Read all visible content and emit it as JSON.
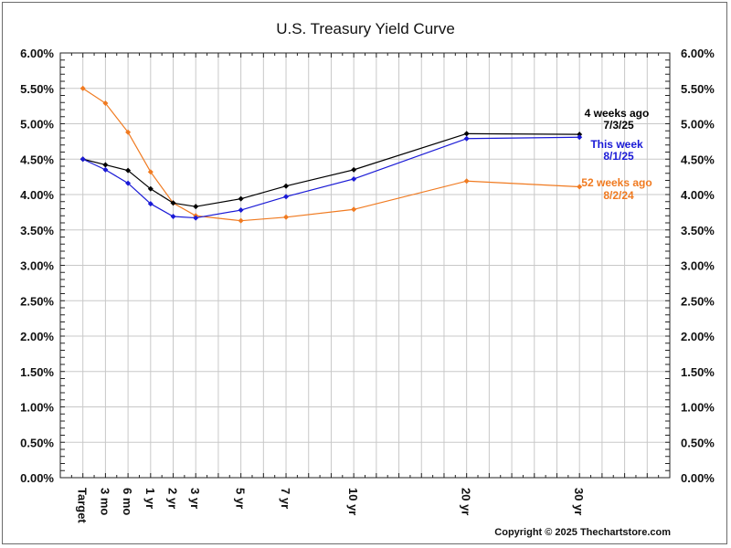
{
  "chart_data": {
    "type": "line",
    "title": "U.S. Treasury Yield Curve",
    "xlabel": "",
    "ylabel": "",
    "ylim": [
      0,
      6
    ],
    "y_tick_step": 0.5,
    "y_minor_step": 0.1,
    "y_tick_format": "percent_2dp",
    "grid": true,
    "categories": [
      "Target",
      "3 mo",
      "6 mo",
      "1 yr",
      "2 yr",
      "3 yr",
      "5 yr",
      "7 yr",
      "10 yr",
      "20 yr",
      "30 yr"
    ],
    "category_slots": [
      1,
      2,
      3,
      4,
      5,
      6,
      8,
      10,
      13,
      18,
      23
    ],
    "x_slot_range": [
      0,
      27
    ],
    "series": [
      {
        "name": "52 weeks ago",
        "date": "8/2/24",
        "color": "#f07a20",
        "values": [
          5.5,
          5.29,
          4.88,
          4.32,
          3.88,
          3.7,
          3.63,
          3.68,
          3.79,
          4.19,
          4.11
        ]
      },
      {
        "name": "4 weeks ago",
        "date": "7/3/25",
        "color": "#000000",
        "values": [
          4.5,
          4.42,
          4.34,
          4.08,
          3.88,
          3.83,
          3.94,
          4.12,
          4.35,
          4.86,
          4.85
        ]
      },
      {
        "name": "This week",
        "date": "8/1/25",
        "color": "#1a1ad6",
        "values": [
          4.5,
          4.35,
          4.16,
          3.87,
          3.69,
          3.67,
          3.78,
          3.97,
          4.22,
          4.79,
          4.81
        ]
      }
    ],
    "legend_placement": "right, next to line ends",
    "legend_order": [
      "4 weeks ago",
      "This week",
      "52 weeks ago"
    ],
    "annotations": [
      "Copyright © 2025 Thechartstore.com"
    ]
  },
  "copyright": "Copyright © 2025 Thechartstore.com"
}
